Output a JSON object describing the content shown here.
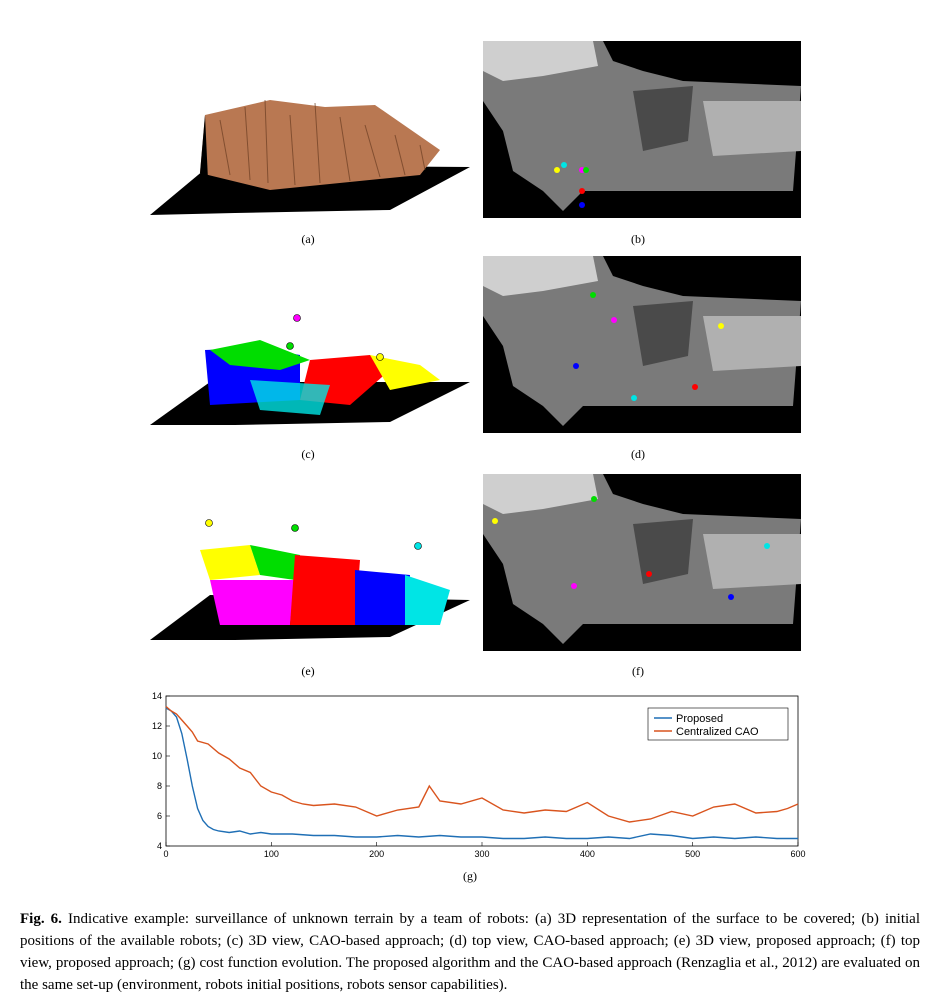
{
  "panels": {
    "a": "(a)",
    "b": "(b)",
    "c": "(c)",
    "d": "(d)",
    "e": "(e)",
    "f": "(f)",
    "g": "(g)"
  },
  "colors": {
    "terrain": "#b97852",
    "yellow": "#ffff00",
    "cyan": "#00e5e5",
    "magenta": "#ff00ff",
    "green": "#00dd00",
    "red": "#ff0000",
    "blue": "#0000ff",
    "proposed": "#1f6fb5",
    "cao": "#d9541e"
  },
  "robots_initial": [
    {
      "color": "yellow"
    },
    {
      "color": "cyan"
    },
    {
      "color": "magenta"
    },
    {
      "color": "green"
    },
    {
      "color": "red"
    },
    {
      "color": "blue"
    }
  ],
  "chart_data": {
    "type": "line",
    "xlim": [
      0,
      600
    ],
    "ylim": [
      4,
      14
    ],
    "xticks": [
      "0",
      "100",
      "200",
      "300",
      "400",
      "500",
      "600"
    ],
    "yticks": [
      "4",
      "6",
      "8",
      "10",
      "12",
      "14"
    ],
    "legend_position": "top-right",
    "series": [
      {
        "name": "Proposed",
        "x": [
          0,
          5,
          10,
          15,
          20,
          25,
          30,
          35,
          40,
          45,
          50,
          60,
          70,
          80,
          90,
          100,
          120,
          140,
          160,
          180,
          200,
          220,
          240,
          260,
          280,
          300,
          320,
          340,
          360,
          380,
          400,
          420,
          440,
          460,
          480,
          500,
          520,
          540,
          560,
          580,
          600
        ],
        "y": [
          13.2,
          13.0,
          12.6,
          11.5,
          9.8,
          8.0,
          6.5,
          5.7,
          5.3,
          5.1,
          5.0,
          4.9,
          5.0,
          4.8,
          4.9,
          4.8,
          4.8,
          4.7,
          4.7,
          4.6,
          4.6,
          4.7,
          4.6,
          4.7,
          4.6,
          4.6,
          4.5,
          4.5,
          4.6,
          4.5,
          4.5,
          4.6,
          4.5,
          4.8,
          4.7,
          4.5,
          4.6,
          4.5,
          4.6,
          4.5,
          4.5
        ]
      },
      {
        "name": "Centralized CAO",
        "x": [
          0,
          5,
          10,
          15,
          20,
          25,
          30,
          40,
          50,
          60,
          70,
          80,
          90,
          100,
          110,
          120,
          130,
          140,
          160,
          180,
          200,
          220,
          240,
          250,
          260,
          280,
          300,
          320,
          340,
          360,
          380,
          400,
          420,
          440,
          460,
          480,
          500,
          520,
          540,
          560,
          580,
          590,
          600
        ],
        "y": [
          13.3,
          13.0,
          12.8,
          12.4,
          12.0,
          11.6,
          11.0,
          10.8,
          10.2,
          9.8,
          9.2,
          8.9,
          8.0,
          7.6,
          7.4,
          7.0,
          6.8,
          6.7,
          6.8,
          6.6,
          6.0,
          6.4,
          6.6,
          8.0,
          7.0,
          6.8,
          7.2,
          6.4,
          6.2,
          6.4,
          6.3,
          6.9,
          6.0,
          5.6,
          5.8,
          6.3,
          6.0,
          6.6,
          6.8,
          6.2,
          6.3,
          6.5,
          6.8
        ]
      }
    ]
  },
  "caption": {
    "label": "Fig. 6.",
    "text": "Indicative example: surveillance of unknown terrain by a team of robots: (a) 3D representation of the surface to be covered; (b) initial positions of the available robots; (c) 3D view, CAO-based approach; (d) top view, CAO-based approach; (e) 3D view, proposed approach; (f) top view, proposed approach; (g) cost function evolution. The proposed algorithm and the CAO-based approach (Renzaglia et al., 2012) are evaluated on the same set-up (environment, robots initial positions, robots sensor capabilities)."
  }
}
